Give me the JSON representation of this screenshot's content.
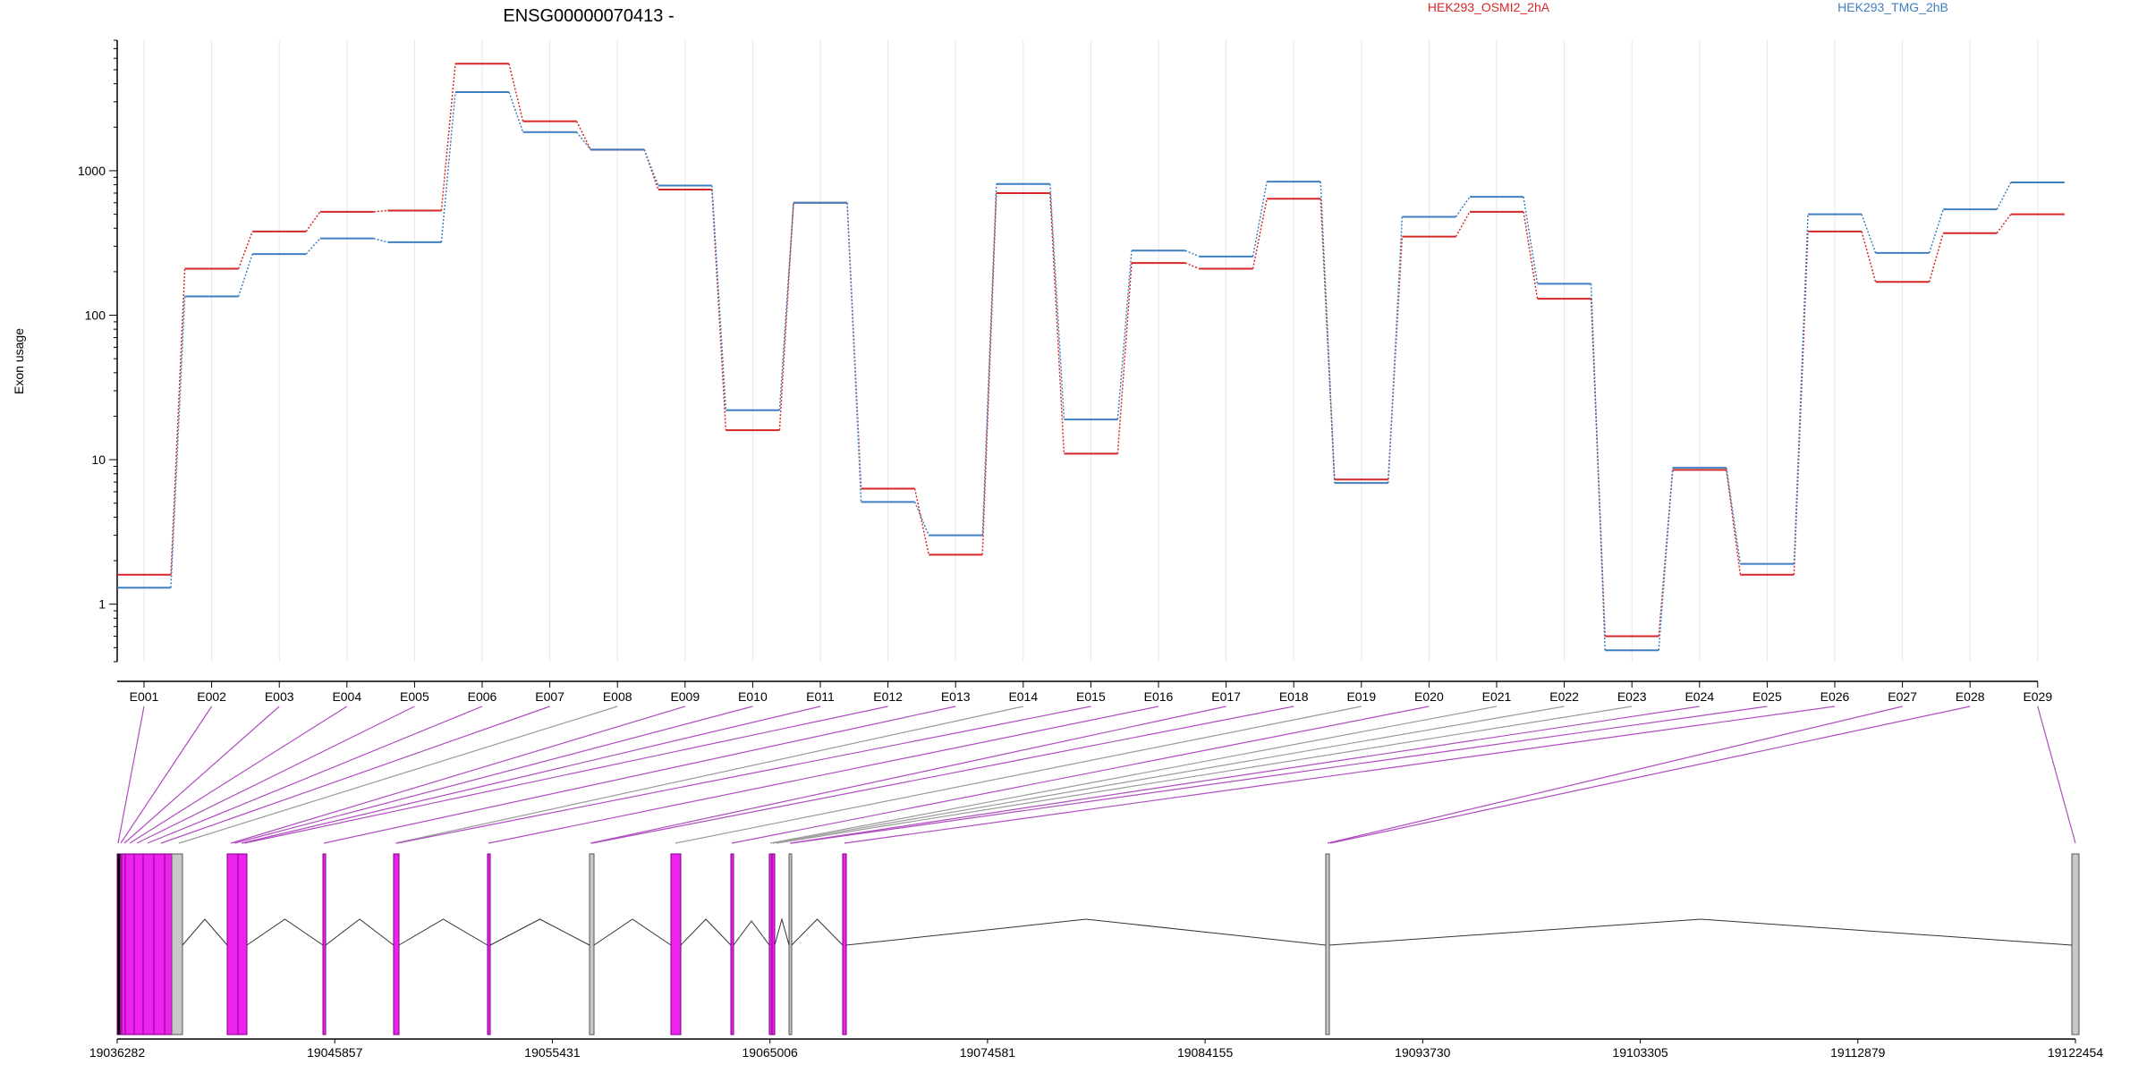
{
  "chart_data": {
    "type": "line",
    "title": "ENSG00000070413 -",
    "xlabel": "",
    "ylabel": "Exon usage",
    "y_scale": "log",
    "ylim": [
      0.4,
      8000
    ],
    "y_ticks": [
      1,
      10,
      100,
      1000
    ],
    "y_tick_labels": [
      "1",
      "10",
      "100",
      "1000"
    ],
    "grid": "vertical",
    "legend_position": "top-right",
    "categories": [
      "E001",
      "E002",
      "E003",
      "E004",
      "E005",
      "E006",
      "E007",
      "E008",
      "E009",
      "E010",
      "E011",
      "E012",
      "E013",
      "E014",
      "E015",
      "E016",
      "E017",
      "E018",
      "E019",
      "E020",
      "E021",
      "E022",
      "E023",
      "E024",
      "E025",
      "E026",
      "E027",
      "E028",
      "E029"
    ],
    "series": [
      {
        "name": "HEK293_OSMI2_2hA",
        "color": "#d62728",
        "values": [
          1.6,
          210,
          380,
          520,
          530,
          5500,
          2200,
          1400,
          740,
          16,
          600,
          6.3,
          2.2,
          700,
          11,
          230,
          210,
          640,
          7.3,
          350,
          520,
          130,
          0.6,
          8.5,
          1.6,
          380,
          170,
          370,
          500
        ]
      },
      {
        "name": "HEK293_TMG_2hB",
        "color": "#3f7fbf",
        "values": [
          1.3,
          135,
          265,
          340,
          320,
          3500,
          1850,
          1400,
          790,
          22,
          600,
          5.1,
          3.0,
          810,
          19,
          280,
          255,
          840,
          6.9,
          480,
          660,
          165,
          0.48,
          8.8,
          1.9,
          500,
          270,
          540,
          830
        ]
      }
    ],
    "gene_model": {
      "coordinate_labels": [
        "19036282",
        "19045857",
        "19055431",
        "19065006",
        "19074581",
        "19084155",
        "19093730",
        "19103305",
        "19112879",
        "19122454"
      ],
      "exon_colors": {
        "significant": "#ee22ee",
        "not_significant": "#c8c8c8",
        "edge": "#7a0080"
      },
      "connector_colors": {
        "significant": "#b04cc0",
        "not_significant": "#9a9a9a"
      },
      "exon_significance": [
        true,
        true,
        true,
        true,
        true,
        true,
        true,
        false,
        true,
        true,
        true,
        true,
        true,
        false,
        true,
        true,
        true,
        true,
        false,
        true,
        false,
        false,
        false,
        true,
        true,
        true,
        true,
        true,
        true
      ]
    }
  }
}
